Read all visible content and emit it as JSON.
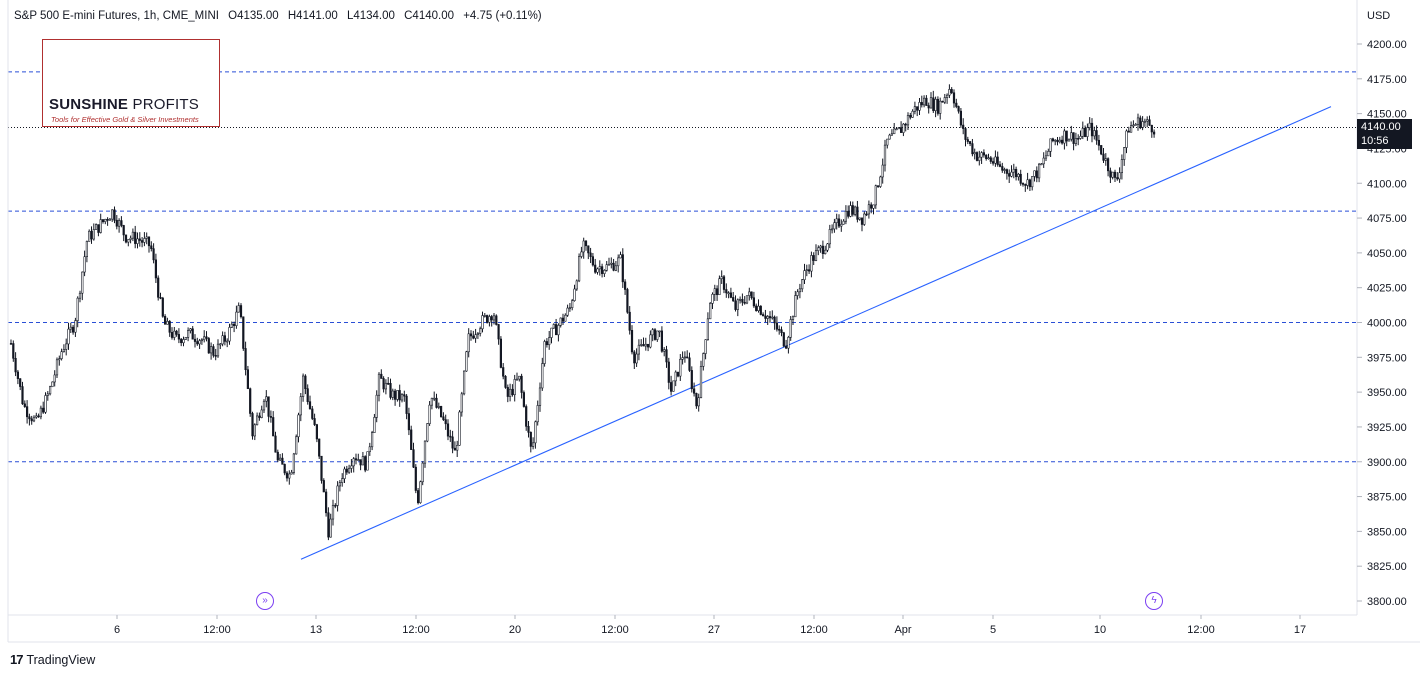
{
  "header": {
    "symbol": "S&P 500 E-mini Futures, 1h, CME_MINI",
    "open": "O4135.00",
    "high": "H4141.00",
    "low": "L4134.00",
    "close": "C4140.00",
    "change": "+4.75 (+0.11%)"
  },
  "currency": "USD",
  "logo": {
    "name_bold": "SUNSHINE",
    "name_thin": "PROFITS",
    "tagline": "Tools for Effective Gold & Silver Investments"
  },
  "last_price": {
    "value": "4140.00",
    "countdown": "10:56"
  },
  "footer": {
    "brand_mark": "17",
    "brand": "TradingView"
  },
  "markers": [
    {
      "icon": "double-arrow-icon",
      "glyph": "»"
    },
    {
      "icon": "lightning-icon",
      "glyph": "ϟ"
    }
  ],
  "colors": {
    "candle": "#131722",
    "hline": "#2a4fd6",
    "trendline": "#2962ff",
    "price_line": "#131722",
    "marker": "#7b3ff2"
  },
  "chart_data": {
    "type": "candlestick",
    "y_axis": {
      "range": [
        3790,
        4215
      ],
      "ticks": [
        3800,
        3825,
        3850,
        3875,
        3900,
        3925,
        3950,
        3975,
        4000,
        4025,
        4050,
        4075,
        4100,
        4125,
        4150,
        4175,
        4200
      ],
      "tick_labels": [
        "3800.00",
        "3825.00",
        "3850.00",
        "3875.00",
        "3900.00",
        "3925.00",
        "3950.00",
        "3975.00",
        "4000.00",
        "4025.00",
        "4050.00",
        "4075.00",
        "4100.00",
        "4125.00",
        "4150.00",
        "4175.00",
        "4200.00"
      ]
    },
    "x_axis": {
      "tick_labels": [
        "6",
        "12:00",
        "13",
        "12:00",
        "20",
        "12:00",
        "27",
        "12:00",
        "Apr",
        "5",
        "10",
        "12:00",
        "17"
      ]
    },
    "horizontal_levels": [
      4180,
      4080,
      4000,
      3900
    ],
    "trendline": {
      "from": [
        3830
      ],
      "to": [
        4155
      ]
    },
    "last_price": 4140,
    "path": [
      3985,
      3940,
      3928,
      3950,
      3980,
      4000,
      4060,
      4070,
      4080,
      4062,
      4060,
      4055,
      4000,
      3988,
      3992,
      3988,
      3978,
      3990,
      4010,
      3920,
      3950,
      3900,
      3890,
      3960,
      3920,
      3850,
      3890,
      3905,
      3898,
      3960,
      3948,
      3945,
      3870,
      3948,
      3930,
      3905,
      3988,
      4000,
      4008,
      3945,
      3960,
      3905,
      3985,
      3997,
      4010,
      4055,
      4040,
      4040,
      4045,
      3975,
      3985,
      3995,
      3950,
      3980,
      3940,
      4015,
      4030,
      4010,
      4020,
      4010,
      4000,
      3985,
      4025,
      4045,
      4055,
      4070,
      4082,
      4075,
      4090,
      4130,
      4138,
      4152,
      4160,
      4155,
      4170,
      4135,
      4120,
      4118,
      4110,
      4108,
      4100,
      4110,
      4130,
      4135,
      4132,
      4140,
      4120,
      4100,
      4140,
      4145,
      4140
    ]
  }
}
